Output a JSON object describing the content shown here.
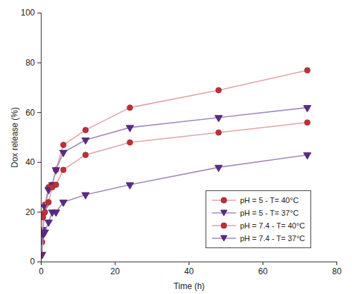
{
  "chart_data": {
    "type": "line",
    "x_label": "Time (h)",
    "y_label": "Dox release (%)",
    "xlim": [
      0,
      80
    ],
    "xticks": [
      0,
      20,
      40,
      60,
      80
    ],
    "ylim": [
      0,
      100
    ],
    "yticks": [
      0,
      20,
      40,
      60,
      80,
      100
    ],
    "legend": "lower right",
    "x": [
      0.25,
      0.5,
      1,
      2,
      3,
      4,
      6,
      12,
      24,
      48,
      72
    ],
    "series": [
      {
        "name": "pH = 5 - T= 40°C",
        "color": "#c0303a",
        "marker": "circle",
        "values": [
          18,
          19,
          23,
          30,
          31,
          37,
          47,
          53,
          62,
          69,
          77
        ]
      },
      {
        "name": "pH = 5 - T= 37°C",
        "color": "#5a2a86",
        "marker": "triangle-down",
        "values": [
          12,
          13,
          22,
          29,
          31,
          37,
          44,
          49,
          54,
          58,
          62
        ]
      },
      {
        "name": "pH = 7.4 - T= 40°C",
        "color": "#c0303a",
        "marker": "circle",
        "values": [
          8,
          18,
          20,
          24,
          30,
          31,
          37,
          43,
          48,
          52,
          56
        ]
      },
      {
        "name": "pH = 7.4 - T= 37°C",
        "color": "#5a2a86",
        "marker": "triangle-down",
        "values": [
          3,
          11,
          12,
          16,
          20,
          20,
          24,
          27,
          31,
          38,
          43
        ]
      }
    ]
  }
}
